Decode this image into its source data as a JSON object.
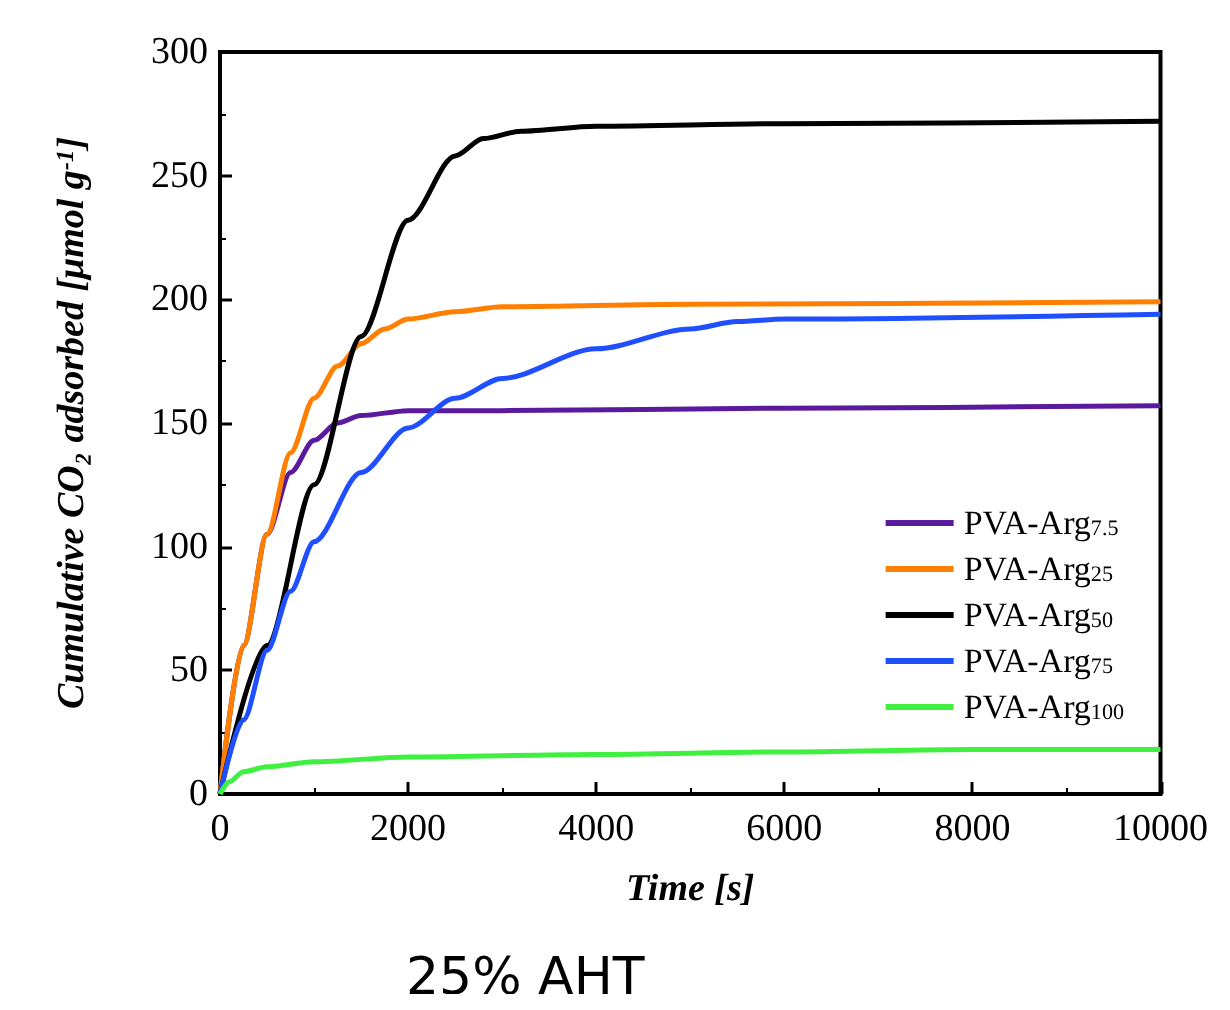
{
  "chart_data": {
    "type": "line",
    "xlabel": "Time [s]",
    "ylabel": "Cumulative CO₂ adsorbed [μmol g$^{-1}$]",
    "annotations": [
      "25% AHT"
    ],
    "xlim": [
      0,
      10000
    ],
    "xticks": [
      0,
      2000,
      4000,
      6000,
      8000,
      10000
    ],
    "ylim": [
      0,
      300
    ],
    "yticks": [
      0,
      50,
      100,
      150,
      200,
      250,
      300
    ],
    "grid": false,
    "legend": "right",
    "marker": "none",
    "line_style": "solid",
    "series": [
      {
        "name": "PVA-Arg$_{7.5}$",
        "color": "#5a1a9e",
        "x": [
          0,
          250,
          500,
          750,
          1000,
          1250,
          1500,
          2000,
          3000,
          6000,
          10000
        ],
        "values": [
          0,
          60,
          105,
          130,
          143,
          150,
          153,
          155,
          155,
          156,
          157
        ]
      },
      {
        "name": "PVA-Arg$_{25}$",
        "color": "#ff8000",
        "x": [
          0,
          250,
          500,
          750,
          1000,
          1250,
          1500,
          1750,
          2000,
          2500,
          3000,
          5000,
          10000
        ],
        "values": [
          0,
          60,
          105,
          138,
          160,
          173,
          182,
          188,
          192,
          195,
          197,
          198,
          199
        ]
      },
      {
        "name": "PVA-Arg$_{50}$",
        "color": "#000000",
        "x": [
          0,
          500,
          1000,
          1500,
          2000,
          2500,
          2800,
          3200,
          4000,
          6000,
          10000
        ],
        "values": [
          0,
          60,
          125,
          185,
          232,
          258,
          265,
          268,
          270,
          271,
          272
        ]
      },
      {
        "name": "PVA-Arg$_{75}$",
        "color": "#1f4fff",
        "x": [
          0,
          250,
          500,
          750,
          1000,
          1500,
          2000,
          2500,
          3000,
          4000,
          5000,
          5500,
          6000,
          10000
        ],
        "values": [
          0,
          30,
          58,
          82,
          102,
          130,
          148,
          160,
          168,
          180,
          188,
          191,
          192,
          194
        ]
      },
      {
        "name": "PVA-Arg$_{100}$",
        "color": "#40f040",
        "x": [
          0,
          100,
          250,
          500,
          1000,
          2000,
          4000,
          6000,
          8000,
          10000
        ],
        "values": [
          0,
          5,
          9,
          11,
          13,
          15,
          16,
          17,
          18,
          18
        ]
      }
    ]
  }
}
